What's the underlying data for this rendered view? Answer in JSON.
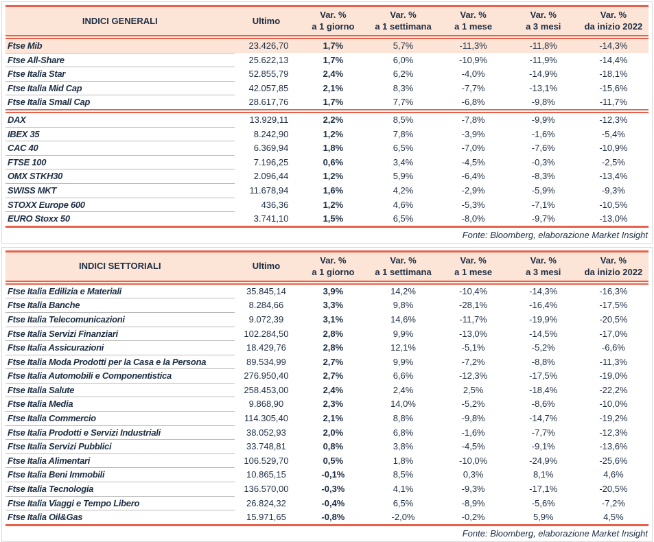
{
  "colors": {
    "accent_line": "#e7604b",
    "header_bg": "#fce4d6",
    "text": "#1d2e44",
    "row_line": "#b9b9b9",
    "frame": "#d9d9d9"
  },
  "tables": [
    {
      "title": "INDICI GENERALI",
      "ultimo_label": "Ultimo",
      "var_label": "Var. %",
      "periods": [
        "a 1 giorno",
        "a 1 settimana",
        "a 1 mese",
        "a 3 mesi",
        "da inizio 2022"
      ],
      "source": "Fonte: Bloomberg, elaborazione Market Insight",
      "rows": [
        {
          "name": "Ftse Mib",
          "ultimo": "23.426,70",
          "values": [
            "1,7%",
            "5,7%",
            "-11,3%",
            "-11,8%",
            "-14,3%"
          ],
          "highlight": true
        },
        {
          "name": "Ftse All-Share",
          "ultimo": "25.622,13",
          "values": [
            "1,7%",
            "6,0%",
            "-10,9%",
            "-11,9%",
            "-14,4%"
          ]
        },
        {
          "name": "Ftse Italia Star",
          "ultimo": "52.855,79",
          "values": [
            "2,4%",
            "6,2%",
            "-4,0%",
            "-14,9%",
            "-18,1%"
          ]
        },
        {
          "name": "Ftse Italia Mid Cap",
          "ultimo": "42.057,85",
          "values": [
            "2,1%",
            "8,3%",
            "-7,7%",
            "-13,1%",
            "-15,6%"
          ]
        },
        {
          "name": "Ftse Italia Small Cap",
          "ultimo": "28.617,76",
          "values": [
            "1,7%",
            "7,7%",
            "-6,8%",
            "-9,8%",
            "-11,7%"
          ]
        },
        {
          "name": "DAX",
          "ultimo": "13.929,11",
          "values": [
            "2,2%",
            "8,5%",
            "-7,8%",
            "-9,9%",
            "-12,3%"
          ],
          "section_start": true
        },
        {
          "name": "IBEX 35",
          "ultimo": "8.242,90",
          "values": [
            "1,2%",
            "7,8%",
            "-3,9%",
            "-1,6%",
            "-5,4%"
          ]
        },
        {
          "name": "CAC 40",
          "ultimo": "6.369,94",
          "values": [
            "1,8%",
            "6,5%",
            "-7,0%",
            "-7,6%",
            "-10,9%"
          ]
        },
        {
          "name": "FTSE 100",
          "ultimo": "7.196,25",
          "values": [
            "0,6%",
            "3,4%",
            "-4,5%",
            "-0,3%",
            "-2,5%"
          ]
        },
        {
          "name": "OMX STKH30",
          "ultimo": "2.096,44",
          "values": [
            "1,2%",
            "5,9%",
            "-6,4%",
            "-8,3%",
            "-13,4%"
          ]
        },
        {
          "name": "SWISS MKT",
          "ultimo": "11.678,94",
          "values": [
            "1,6%",
            "4,2%",
            "-2,9%",
            "-5,9%",
            "-9,3%"
          ]
        },
        {
          "name": "STOXX Europe 600",
          "ultimo": "436,36",
          "values": [
            "1,2%",
            "4,6%",
            "-5,3%",
            "-7,1%",
            "-10,5%"
          ]
        },
        {
          "name": "EURO Stoxx 50",
          "ultimo": "3.741,10",
          "values": [
            "1,5%",
            "6,5%",
            "-8,0%",
            "-9,7%",
            "-13,0%"
          ]
        }
      ]
    },
    {
      "title": "INDICI SETTORIALI",
      "ultimo_label": "Ultimo",
      "var_label": "Var. %",
      "periods": [
        "a 1 giorno",
        "a 1 settimana",
        "a 1 mese",
        "a 3 mesi",
        "da inizio 2022"
      ],
      "source": "Fonte: Bloomberg, elaborazione Market Insight",
      "rows": [
        {
          "name": "Ftse Italia Edilizia e Materiali",
          "ultimo": "35.845,14",
          "values": [
            "3,9%",
            "14,2%",
            "-10,4%",
            "-14,3%",
            "-16,3%"
          ]
        },
        {
          "name": "Ftse Italia Banche",
          "ultimo": "8.284,66",
          "values": [
            "3,3%",
            "9,8%",
            "-28,1%",
            "-16,4%",
            "-17,5%"
          ]
        },
        {
          "name": "Ftse Italia Telecomunicazioni",
          "ultimo": "9.072,39",
          "values": [
            "3,1%",
            "14,6%",
            "-11,7%",
            "-19,9%",
            "-20,5%"
          ]
        },
        {
          "name": "Ftse Italia Servizi Finanziari",
          "ultimo": "102.284,50",
          "values": [
            "2,8%",
            "9,9%",
            "-13,0%",
            "-14,5%",
            "-17,0%"
          ]
        },
        {
          "name": "Ftse Italia Assicurazioni",
          "ultimo": "18.429,76",
          "values": [
            "2,8%",
            "12,1%",
            "-5,1%",
            "-5,2%",
            "-6,6%"
          ]
        },
        {
          "name": "Ftse Italia Moda Prodotti per la Casa e la Persona",
          "ultimo": "89.534,99",
          "values": [
            "2,7%",
            "9,9%",
            "-7,2%",
            "-8,8%",
            "-11,3%"
          ]
        },
        {
          "name": "Ftse Italia Automobili e Componentistica",
          "ultimo": "276.950,40",
          "values": [
            "2,7%",
            "6,6%",
            "-12,3%",
            "-17,5%",
            "-19,0%"
          ]
        },
        {
          "name": "Ftse Italia Salute",
          "ultimo": "258.453,00",
          "values": [
            "2,4%",
            "2,4%",
            "2,5%",
            "-18,4%",
            "-22,2%"
          ]
        },
        {
          "name": "Ftse Italia Media",
          "ultimo": "9.868,90",
          "values": [
            "2,3%",
            "14,0%",
            "-5,2%",
            "-8,6%",
            "-10,0%"
          ]
        },
        {
          "name": "Ftse Italia Commercio",
          "ultimo": "114.305,40",
          "values": [
            "2,1%",
            "8,8%",
            "-9,8%",
            "-14,7%",
            "-19,2%"
          ]
        },
        {
          "name": "Ftse Italia Prodotti e Servizi Industriali",
          "ultimo": "38.052,93",
          "values": [
            "2,0%",
            "6,8%",
            "-1,6%",
            "-7,7%",
            "-12,3%"
          ]
        },
        {
          "name": "Ftse Italia Servizi Pubblici",
          "ultimo": "33.748,81",
          "values": [
            "0,8%",
            "3,8%",
            "-4,5%",
            "-9,1%",
            "-13,6%"
          ]
        },
        {
          "name": "Ftse Italia Alimentari",
          "ultimo": "106.529,70",
          "values": [
            "0,5%",
            "1,8%",
            "-10,0%",
            "-24,9%",
            "-25,6%"
          ]
        },
        {
          "name": "Ftse Italia Beni Immobili",
          "ultimo": "10.865,15",
          "values": [
            "-0,1%",
            "8,5%",
            "0,3%",
            "8,1%",
            "4,6%"
          ]
        },
        {
          "name": "Ftse Italia Tecnologia",
          "ultimo": "136.570,00",
          "values": [
            "-0,3%",
            "4,1%",
            "-9,3%",
            "-17,1%",
            "-20,5%"
          ]
        },
        {
          "name": "Ftse Italia Viaggi e Tempo Libero",
          "ultimo": "26.824,32",
          "values": [
            "-0,4%",
            "6,5%",
            "-8,9%",
            "-5,6%",
            "-7,2%"
          ]
        },
        {
          "name": "Ftse Italia Oil&Gas",
          "ultimo": "15.971,65",
          "values": [
            "-0,8%",
            "-2,0%",
            "-0,2%",
            "5,9%",
            "4,5%"
          ]
        }
      ]
    }
  ]
}
